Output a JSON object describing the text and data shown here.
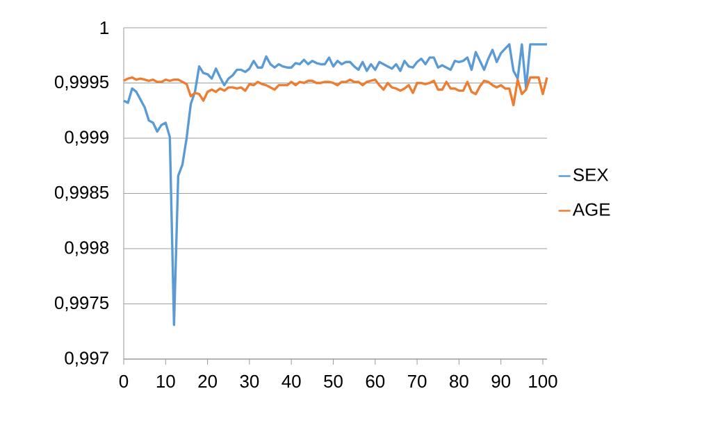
{
  "chart_data": {
    "type": "line",
    "x": [
      0,
      1,
      2,
      3,
      4,
      5,
      6,
      7,
      8,
      9,
      10,
      11,
      12,
      13,
      14,
      15,
      16,
      17,
      18,
      19,
      20,
      21,
      22,
      23,
      24,
      25,
      26,
      27,
      28,
      29,
      30,
      31,
      32,
      33,
      34,
      35,
      36,
      37,
      38,
      39,
      40,
      41,
      42,
      43,
      44,
      45,
      46,
      47,
      48,
      49,
      50,
      51,
      52,
      53,
      54,
      55,
      56,
      57,
      58,
      59,
      60,
      61,
      62,
      63,
      64,
      65,
      66,
      67,
      68,
      69,
      70,
      71,
      72,
      73,
      74,
      75,
      76,
      77,
      78,
      79,
      80,
      81,
      82,
      83,
      84,
      85,
      86,
      87,
      88,
      89,
      90,
      91,
      92,
      93,
      94,
      95,
      96,
      97,
      98,
      99,
      100,
      101
    ],
    "series": [
      {
        "name": "SEX",
        "color": "#5b9bd5",
        "values": [
          0.99934,
          0.99932,
          0.99945,
          0.99942,
          0.99935,
          0.99928,
          0.99916,
          0.99914,
          0.99906,
          0.99912,
          0.99914,
          0.99901,
          0.99731,
          0.99866,
          0.99876,
          0.999,
          0.99931,
          0.99942,
          0.99965,
          0.99959,
          0.99958,
          0.99954,
          0.99963,
          0.99955,
          0.99948,
          0.99954,
          0.99957,
          0.99962,
          0.99962,
          0.9996,
          0.99963,
          0.9997,
          0.99964,
          0.99964,
          0.99974,
          0.99967,
          0.99964,
          0.99967,
          0.99965,
          0.99964,
          0.99964,
          0.99968,
          0.99967,
          0.99971,
          0.99967,
          0.9997,
          0.99968,
          0.99967,
          0.99967,
          0.99973,
          0.99965,
          0.9997,
          0.99967,
          0.99969,
          0.99969,
          0.99965,
          0.99962,
          0.99969,
          0.99961,
          0.99967,
          0.99962,
          0.99969,
          0.99967,
          0.99965,
          0.99963,
          0.99967,
          0.99961,
          0.9997,
          0.99965,
          0.99964,
          0.99969,
          0.99972,
          0.99967,
          0.99973,
          0.99973,
          0.99964,
          0.99966,
          0.99964,
          0.99962,
          0.9997,
          0.99969,
          0.9997,
          0.99973,
          0.99962,
          0.99978,
          0.9997,
          0.99962,
          0.99972,
          0.9998,
          0.99969,
          0.99977,
          0.99981,
          0.99985,
          0.99961,
          0.99954,
          0.99985,
          0.99945,
          0.99985,
          0.99985,
          0.99985,
          0.99985,
          0.99985
        ]
      },
      {
        "name": "AGE",
        "color": "#ed7d31",
        "values": [
          0.99952,
          0.99954,
          0.99955,
          0.99953,
          0.99954,
          0.99953,
          0.99952,
          0.99953,
          0.99951,
          0.99951,
          0.99953,
          0.99952,
          0.99953,
          0.99953,
          0.99951,
          0.99949,
          0.99938,
          0.99941,
          0.9994,
          0.99934,
          0.99942,
          0.99944,
          0.99942,
          0.99945,
          0.99943,
          0.99946,
          0.99946,
          0.99945,
          0.99946,
          0.99943,
          0.99949,
          0.99948,
          0.99951,
          0.99949,
          0.99948,
          0.99946,
          0.99944,
          0.99948,
          0.99948,
          0.99948,
          0.99951,
          0.99948,
          0.99951,
          0.9995,
          0.99952,
          0.99952,
          0.9995,
          0.9995,
          0.99951,
          0.99951,
          0.9995,
          0.99948,
          0.99951,
          0.99951,
          0.99953,
          0.99951,
          0.99951,
          0.99948,
          0.99951,
          0.99952,
          0.99953,
          0.99948,
          0.99944,
          0.9995,
          0.99946,
          0.99945,
          0.99943,
          0.99945,
          0.99948,
          0.99941,
          0.9995,
          0.9995,
          0.99949,
          0.9995,
          0.99952,
          0.99944,
          0.99944,
          0.99951,
          0.99945,
          0.99945,
          0.99943,
          0.99943,
          0.99951,
          0.99942,
          0.9994,
          0.99947,
          0.99952,
          0.99951,
          0.99948,
          0.99946,
          0.99948,
          0.99945,
          0.99945,
          0.9993,
          0.99953,
          0.9994,
          0.99944,
          0.99955,
          0.99955,
          0.99955,
          0.9994,
          0.99955
        ]
      }
    ],
    "xlim": [
      0,
      101
    ],
    "ylim": [
      0.997,
      1
    ],
    "xticks": [
      0,
      10,
      20,
      30,
      40,
      50,
      60,
      70,
      80,
      90,
      100
    ],
    "yticks": [
      {
        "value": 0.997,
        "label": "0,997"
      },
      {
        "value": 0.9975,
        "label": "0,9975"
      },
      {
        "value": 0.998,
        "label": "0,998"
      },
      {
        "value": 0.9985,
        "label": "0,9985"
      },
      {
        "value": 0.999,
        "label": "0,999"
      },
      {
        "value": 0.9995,
        "label": "0,9995"
      },
      {
        "value": 1,
        "label": "1"
      }
    ],
    "grid": "y",
    "legend": "right",
    "marker": "none"
  }
}
